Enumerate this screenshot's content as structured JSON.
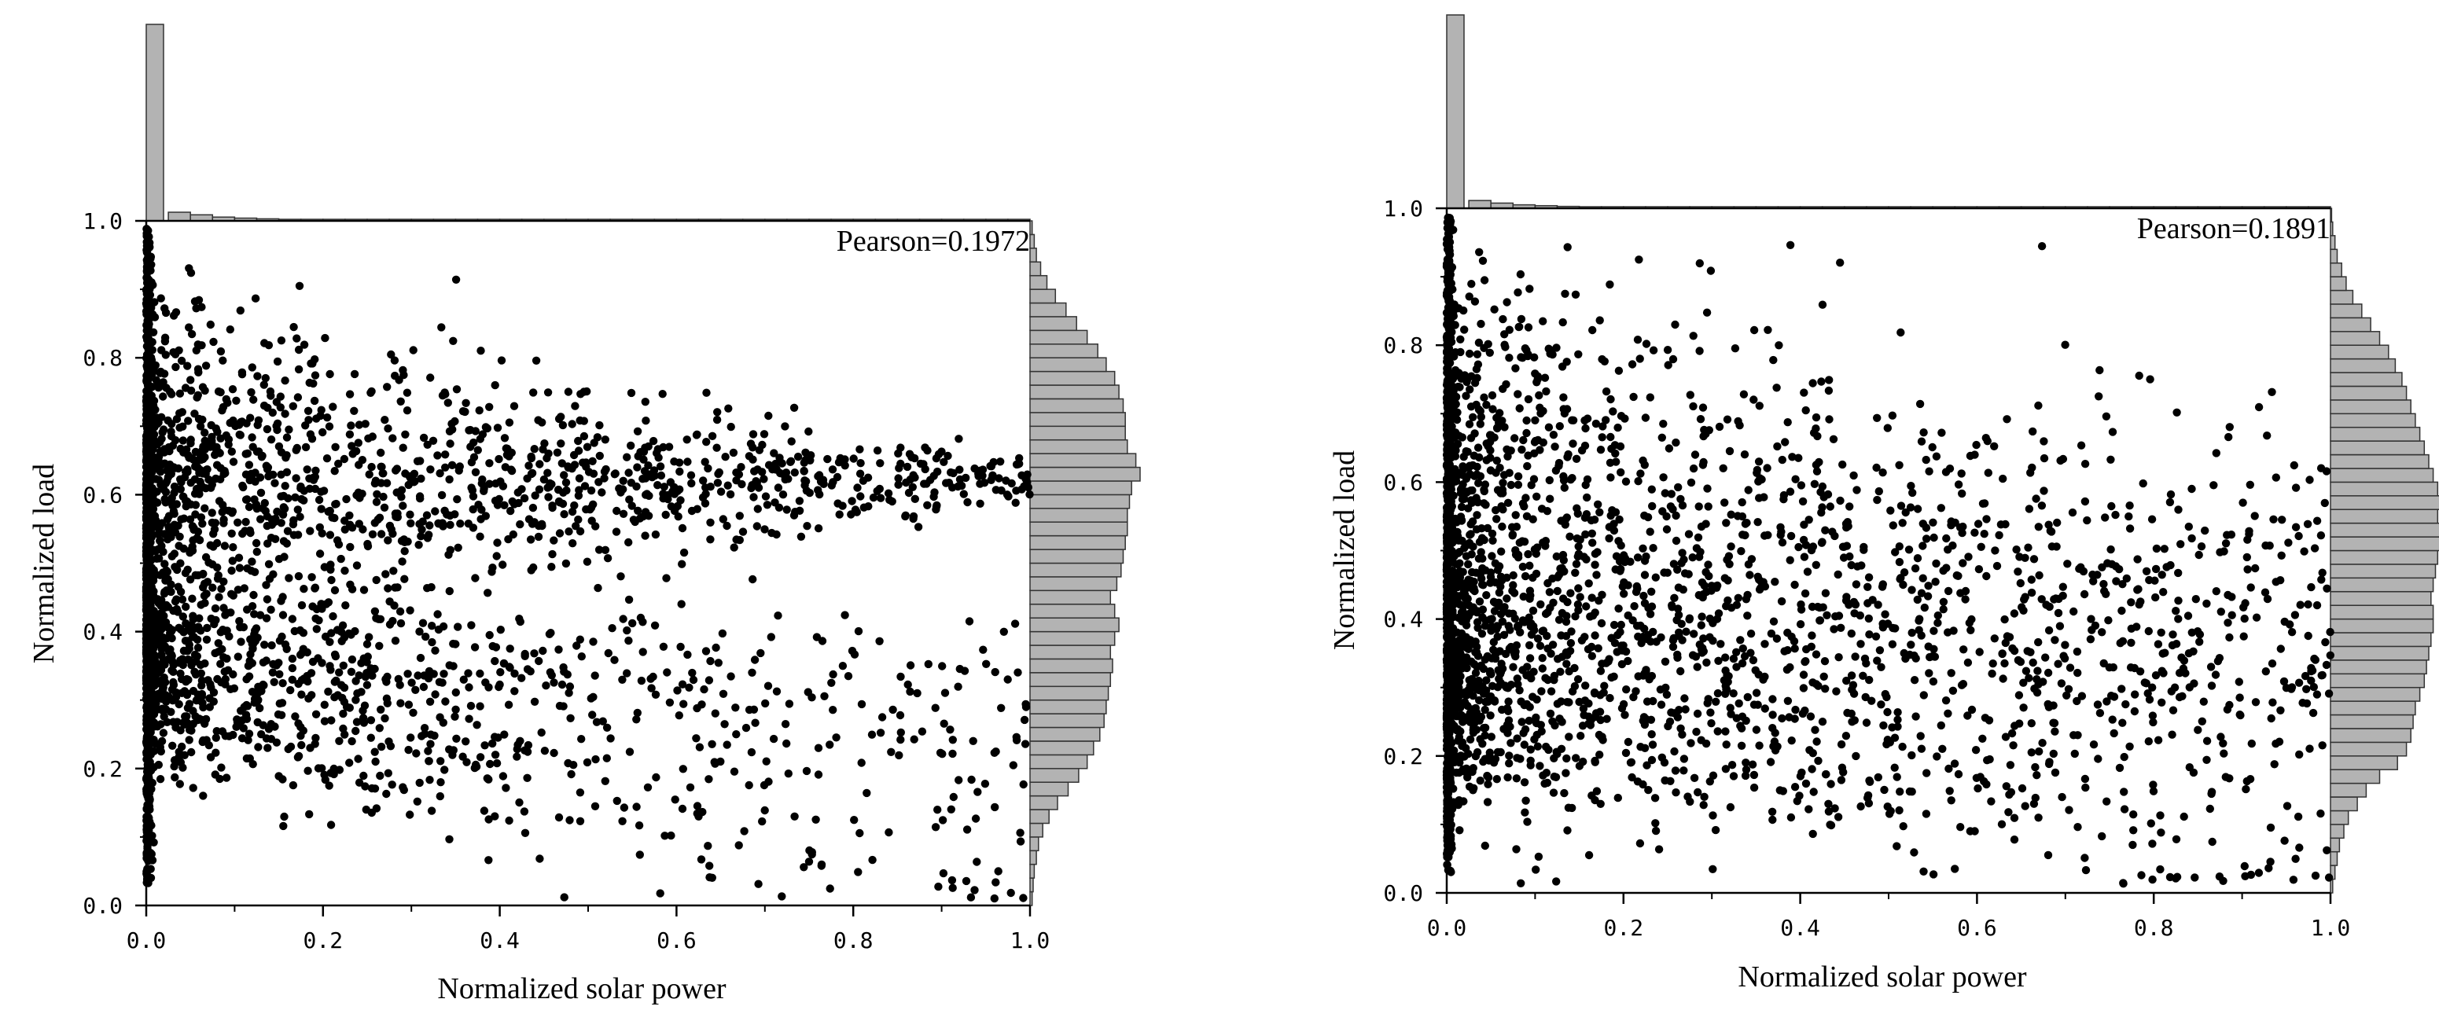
{
  "chart_data": [
    {
      "type": "scatter",
      "annotation": "Pearson=0.1972",
      "xlabel": "Normalized solar power",
      "ylabel": "Normalized load",
      "xlim": [
        0,
        1
      ],
      "ylim": [
        0,
        1
      ],
      "x_ticks": [
        "0.0",
        "0.2",
        "0.4",
        "0.6",
        "0.8",
        "1.0"
      ],
      "y_ticks": [
        "0.0",
        "0.2",
        "0.4",
        "0.6",
        "0.8",
        "1.0"
      ],
      "grid": false,
      "marginal_histograms": true,
      "point_color": "#000000",
      "hist_color": "#b3b3b3",
      "seed": 1972,
      "n_points": 2600,
      "x_hist_density": [
        100,
        5,
        3.5,
        2.2,
        1.6,
        1.2,
        0.9,
        0.7,
        0.5,
        0.45,
        0.4,
        0.35,
        0.3,
        0.3,
        0.28,
        0.25,
        0.25,
        0.22,
        0.2,
        0.2,
        0.2,
        0.18,
        0.18,
        0.16,
        0.16,
        0.15,
        0.15,
        0.14,
        0.14,
        0.14,
        0.13,
        0.13,
        0.12,
        0.12,
        0.12,
        0.11,
        0.11,
        0.1,
        0.1,
        0.1
      ],
      "y_hist_density": [
        1,
        1.5,
        2,
        3,
        4,
        6,
        9,
        13,
        18,
        23,
        27,
        30,
        33,
        35,
        36,
        37,
        38,
        39,
        38,
        40,
        42,
        40,
        38,
        41,
        43,
        44,
        45,
        46,
        46,
        47,
        48,
        52,
        50,
        46,
        45,
        45,
        44,
        42,
        40,
        36,
        32,
        27,
        22,
        17,
        12,
        8,
        5,
        3,
        2,
        1
      ]
    },
    {
      "type": "scatter",
      "annotation": "Pearson=0.1891",
      "xlabel": "Normalized solar power",
      "ylabel": "Normalized load",
      "xlim": [
        0,
        1
      ],
      "ylim": [
        0,
        1
      ],
      "x_ticks": [
        "0.0",
        "0.2",
        "0.4",
        "0.6",
        "0.8",
        "1.0"
      ],
      "y_ticks": [
        "0.0",
        "0.2",
        "0.4",
        "0.6",
        "0.8",
        "1.0"
      ],
      "grid": false,
      "marginal_histograms": true,
      "point_color": "#000000",
      "hist_color": "#b3b3b3",
      "seed": 1891,
      "n_points": 2600,
      "x_hist_density": [
        100,
        4.5,
        3,
        2,
        1.5,
        1.1,
        0.8,
        0.6,
        0.5,
        0.45,
        0.4,
        0.35,
        0.3,
        0.28,
        0.26,
        0.24,
        0.22,
        0.2,
        0.2,
        0.18,
        0.18,
        0.17,
        0.16,
        0.15,
        0.15,
        0.14,
        0.14,
        0.13,
        0.13,
        0.12,
        0.12,
        0.12,
        0.11,
        0.11,
        0.1,
        0.1,
        0.1,
        0.1,
        0.09,
        0.09
      ],
      "y_hist_density": [
        1,
        2,
        3,
        4,
        6,
        8,
        12,
        16,
        22,
        30,
        34,
        36,
        37,
        38,
        40,
        42,
        43,
        44,
        45,
        46,
        46,
        45,
        46,
        47,
        48,
        50,
        49,
        48,
        50,
        48,
        46,
        44,
        42,
        40,
        38,
        36,
        34,
        32,
        29,
        26,
        22,
        18,
        14,
        10,
        7,
        5,
        3,
        2,
        1,
        0.5
      ]
    }
  ]
}
